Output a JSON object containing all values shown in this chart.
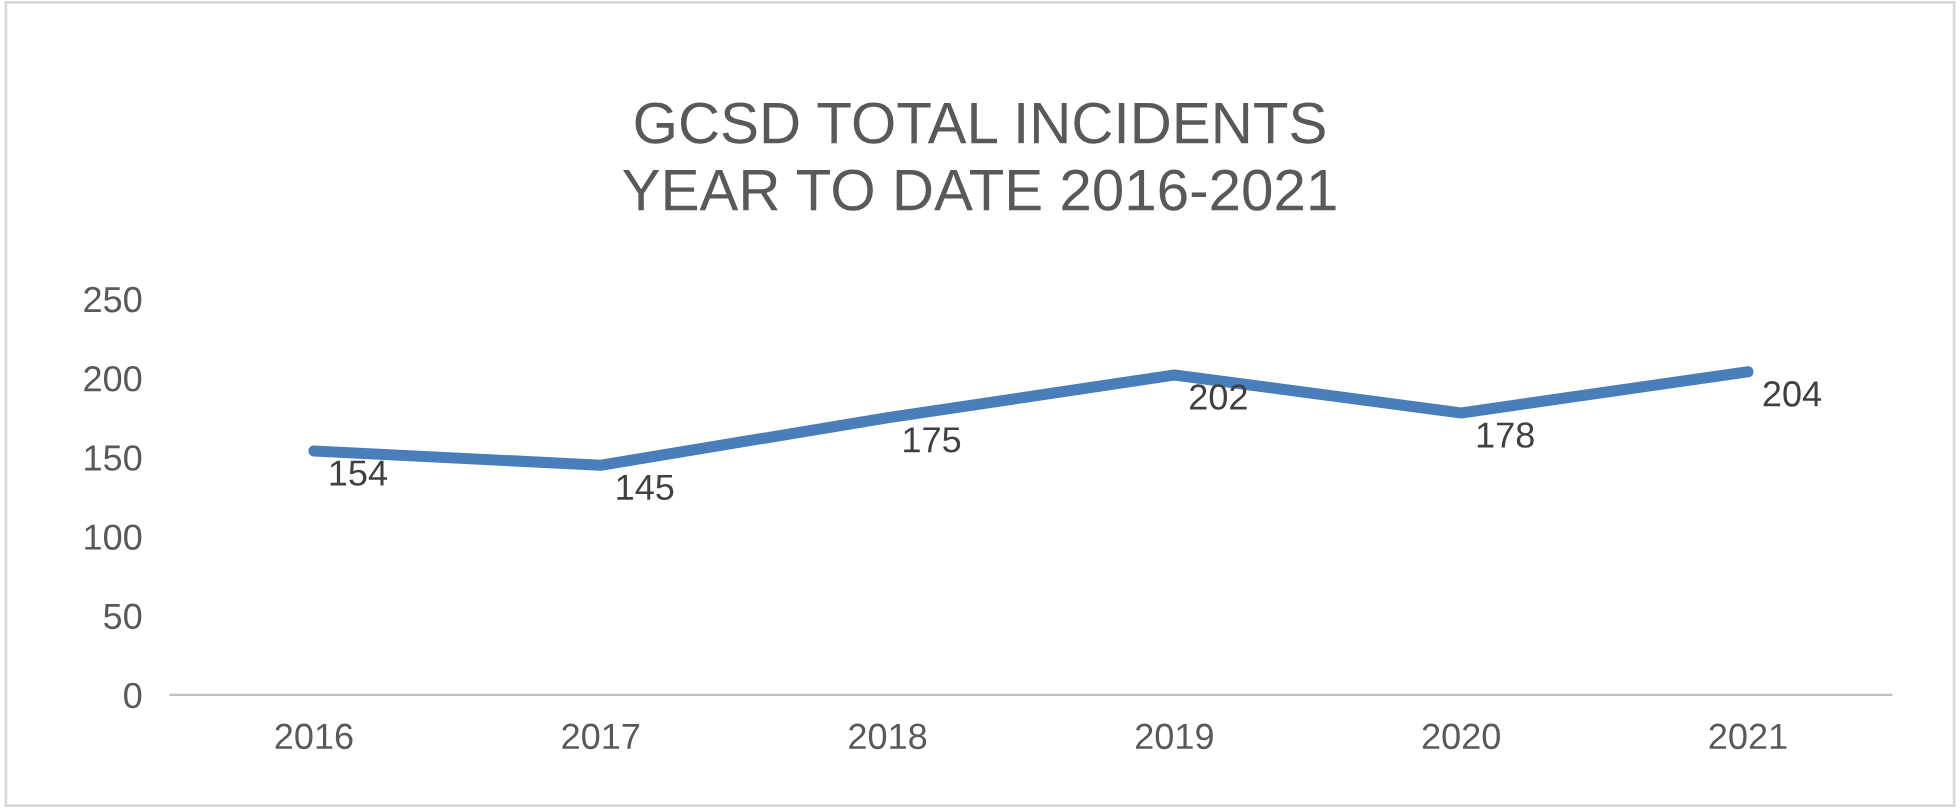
{
  "chart_data": {
    "type": "line",
    "title": "GCSD TOTAL INCIDENTS\nYEAR TO DATE 2016-2021",
    "categories": [
      "2016",
      "2017",
      "2018",
      "2019",
      "2020",
      "2021"
    ],
    "series": [
      {
        "color": "#4a7ebb",
        "values": [
          154,
          145,
          175,
          202,
          178,
          204
        ]
      }
    ],
    "ylim": [
      0,
      250
    ],
    "yticks": [
      0,
      50,
      100,
      150,
      200,
      250
    ],
    "grid": false,
    "legend": false,
    "marker": "none",
    "line_style": "solid",
    "data_labels": true
  }
}
